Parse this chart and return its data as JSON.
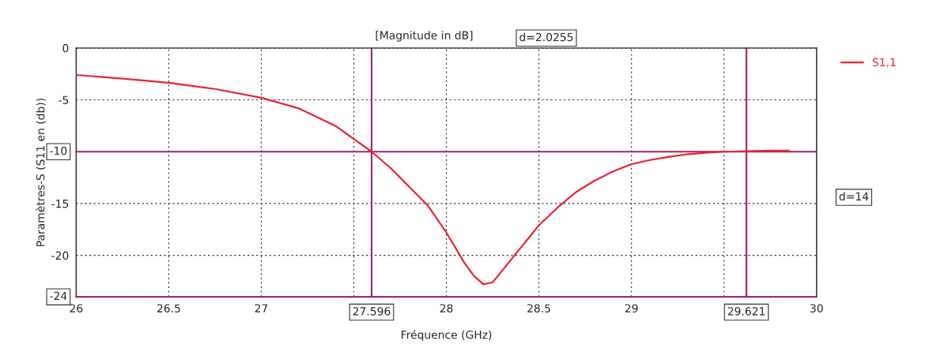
{
  "chart_data": {
    "type": "line",
    "title": "[Magnitude in dB]",
    "xlabel": "Fréquence (GHz)",
    "ylabel": "Paramètres-S (S11 en (db))",
    "xlim": [
      26,
      30
    ],
    "ylim": [
      -24,
      0
    ],
    "xticks": [
      26,
      26.5,
      27,
      {
        "value": 27.5,
        "label": null
      },
      28,
      28.5,
      29,
      {
        "value": 29.5,
        "label": null
      },
      30
    ],
    "yticks": [
      0,
      -5,
      -15,
      -20
    ],
    "grid": true,
    "legend": "right",
    "marker": "none",
    "line_style": "solid",
    "series": [
      {
        "name": "S1,1",
        "color": "#e8262f",
        "x": [
          26,
          26.25,
          26.5,
          26.75,
          27,
          27.2,
          27.4,
          27.596,
          27.7,
          27.8,
          27.9,
          28,
          28.1,
          28.15,
          28.2,
          28.25,
          28.3,
          28.4,
          28.5,
          28.6,
          28.7,
          28.8,
          28.9,
          29,
          29.1,
          29.2,
          29.3,
          29.4,
          29.5,
          29.621,
          29.75,
          29.85
        ],
        "values": [
          -2.6,
          -2.95,
          -3.35,
          -3.95,
          -4.8,
          -5.8,
          -7.5,
          -10,
          -11.6,
          -13.4,
          -15.2,
          -17.8,
          -20.8,
          -22,
          -22.8,
          -22.6,
          -21.5,
          -19.3,
          -17.1,
          -15.4,
          -13.9,
          -12.8,
          -11.9,
          -11.2,
          -10.8,
          -10.5,
          -10.25,
          -10.1,
          -10,
          -9.95,
          -9.9,
          -9.9
        ]
      }
    ],
    "ref_lines": [
      {
        "axis": "y",
        "value": -10,
        "label": "-10",
        "color": "#a0206e"
      },
      {
        "axis": "y",
        "value": -24,
        "label": "-24",
        "color": "#a0206e"
      },
      {
        "axis": "x",
        "value": 27.596,
        "label": "27.596",
        "color": "#a0206e"
      },
      {
        "axis": "x",
        "value": 29.621,
        "label": "29.621",
        "color": "#a0206e"
      }
    ],
    "annotations": [
      "d=2.0255",
      "d=14"
    ]
  }
}
